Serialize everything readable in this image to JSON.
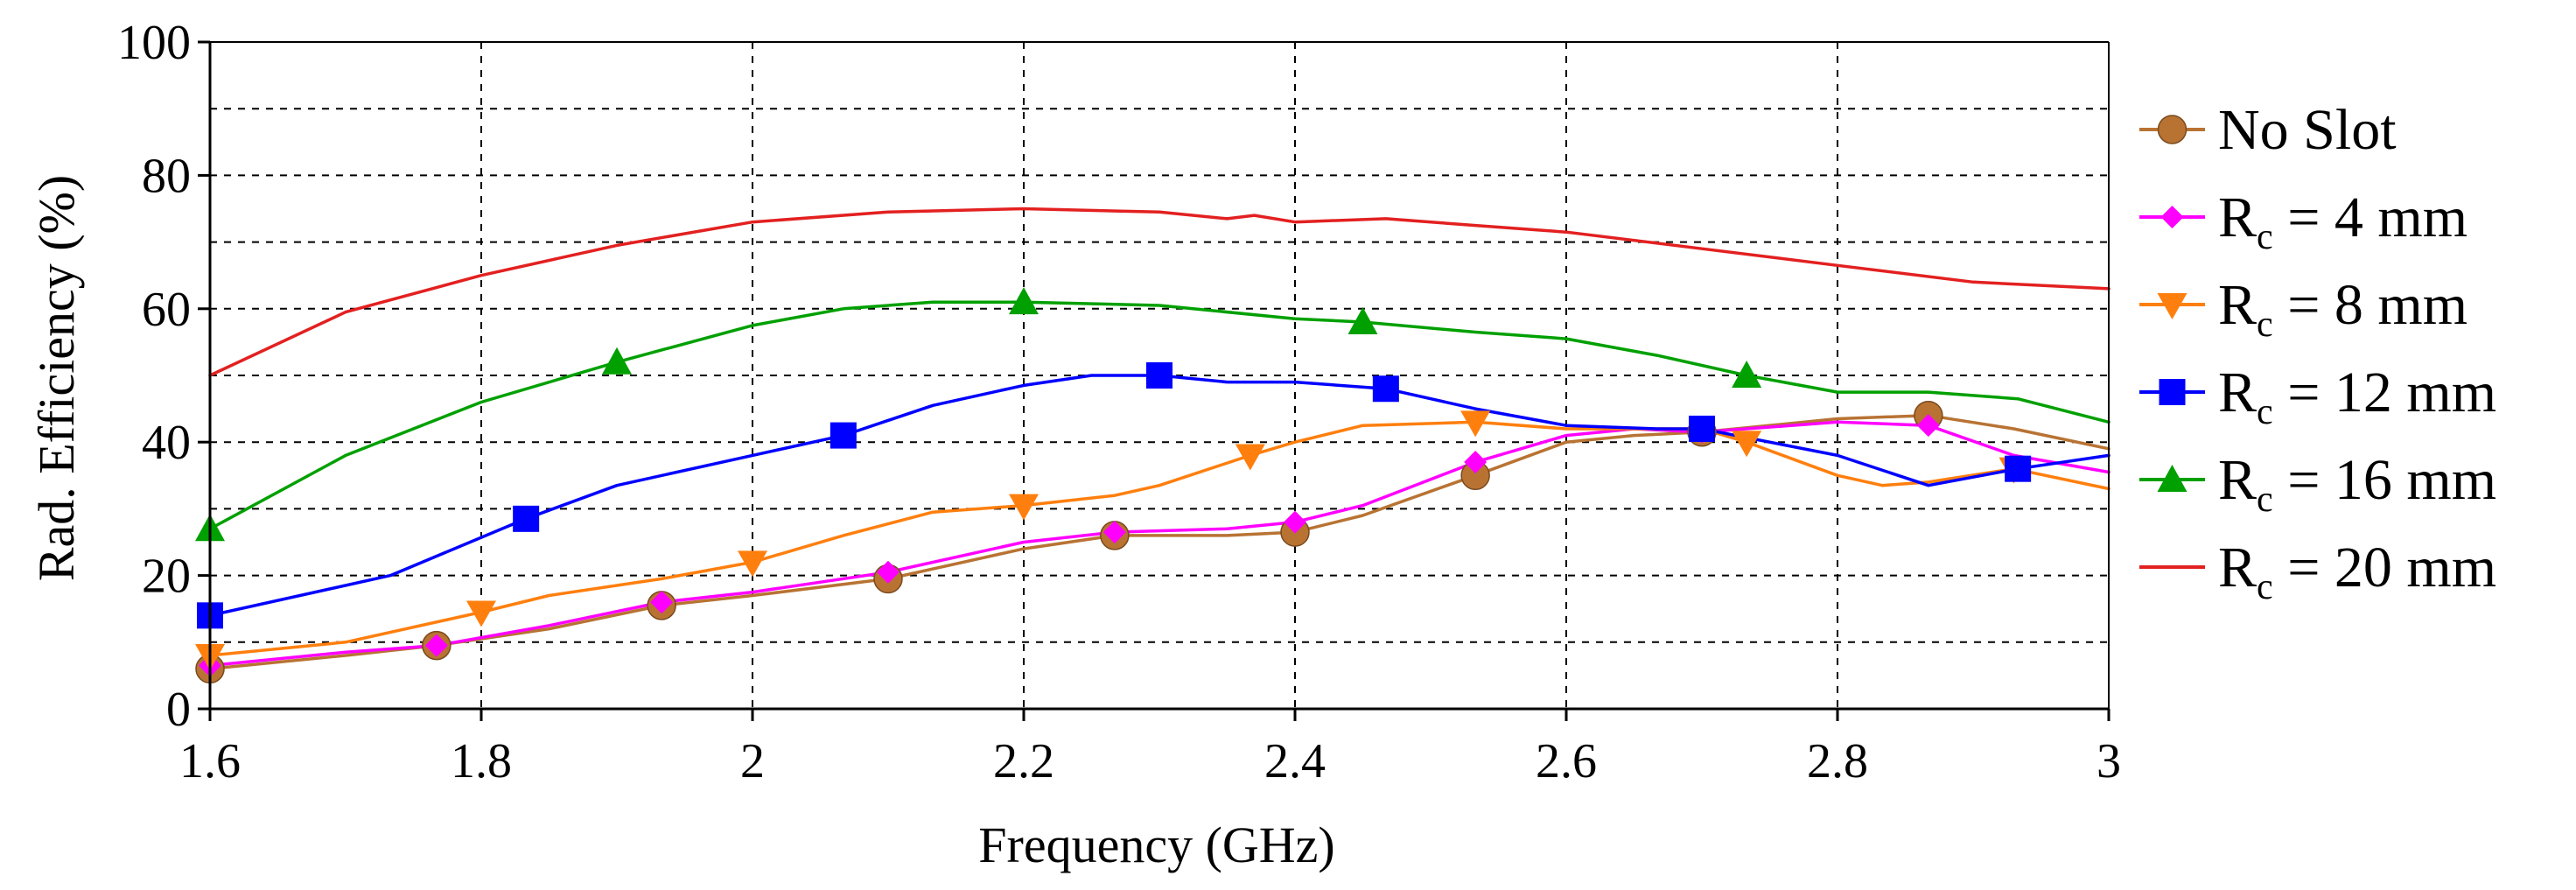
{
  "chart_data": {
    "type": "line",
    "title": "",
    "xlabel": "Frequency (GHz)",
    "ylabel": "Rad. Efficiency (%)",
    "xlim": [
      1.6,
      3.0
    ],
    "ylim": [
      0,
      100
    ],
    "xticks": [
      1.6,
      1.8,
      2.0,
      2.2,
      2.4,
      2.6,
      2.8,
      3.0
    ],
    "xtick_labels": [
      "1.6",
      "1.8",
      "2",
      "2.2",
      "2.4",
      "2.6",
      "2.8",
      "3"
    ],
    "yticks": [
      0,
      20,
      40,
      60,
      80,
      100
    ],
    "ytick_labels": [
      "0",
      "20",
      "40",
      "60",
      "80",
      "100"
    ],
    "grid": true,
    "legend_position": "right",
    "series": [
      {
        "name": "No Slot",
        "legend_main": "No Slot",
        "legend_sub": "",
        "legend_unit": "",
        "color": "#b87333",
        "marker": "circle",
        "x": [
          1.6,
          1.7,
          1.767,
          1.85,
          1.933,
          2.0,
          2.1,
          2.2,
          2.267,
          2.35,
          2.4,
          2.45,
          2.533,
          2.6,
          2.65,
          2.7,
          2.8,
          2.867,
          2.93,
          3.0
        ],
        "y": [
          6,
          8,
          9.5,
          12,
          15.5,
          17,
          19.5,
          24,
          26,
          26,
          26.5,
          29,
          35,
          40,
          41,
          41.5,
          43.5,
          44,
          42,
          39
        ],
        "markers_x": [
          1.6,
          1.767,
          1.933,
          2.1,
          2.267,
          2.4,
          2.533,
          2.7,
          2.867
        ],
        "markers_y": [
          6,
          9.5,
          15.5,
          19.5,
          26,
          26.5,
          35,
          41.5,
          44
        ]
      },
      {
        "name": "Rc = 4 mm",
        "legend_main": "R",
        "legend_sub": "c",
        "legend_unit": " = 4 mm",
        "color": "#ff00ff",
        "marker": "diamond",
        "x": [
          1.6,
          1.7,
          1.767,
          1.85,
          1.933,
          2.0,
          2.1,
          2.2,
          2.267,
          2.35,
          2.4,
          2.45,
          2.533,
          2.6,
          2.65,
          2.7,
          2.8,
          2.867,
          2.93,
          3.0
        ],
        "y": [
          6.5,
          8.5,
          9.5,
          12.5,
          16,
          17.5,
          20.5,
          25,
          26.5,
          27,
          28,
          30.5,
          37,
          41,
          42,
          41.5,
          43,
          42.5,
          38,
          35.5
        ],
        "markers_x": [
          1.6,
          1.767,
          1.933,
          2.1,
          2.267,
          2.4,
          2.533,
          2.7,
          2.867
        ],
        "markers_y": [
          6.5,
          9.5,
          16,
          20.5,
          26.5,
          28,
          37,
          41.5,
          42.5
        ]
      },
      {
        "name": "Rc = 8 mm",
        "legend_main": "R",
        "legend_sub": "c",
        "legend_unit": " = 8 mm",
        "color": "#ff7f0e",
        "marker": "triangle-down",
        "x": [
          1.6,
          1.7,
          1.8,
          1.85,
          1.933,
          2.0,
          2.067,
          2.133,
          2.2,
          2.267,
          2.3,
          2.367,
          2.4,
          2.45,
          2.533,
          2.6,
          2.65,
          2.7,
          2.733,
          2.8,
          2.833,
          2.867,
          2.93,
          3.0
        ],
        "y": [
          8,
          10,
          14.5,
          17,
          19.5,
          22,
          26,
          29.5,
          30.5,
          32,
          33.5,
          38,
          40,
          42.5,
          43,
          42,
          42,
          42,
          40,
          35,
          33.5,
          34,
          36,
          33
        ],
        "markers_x": [
          1.6,
          1.8,
          2.0,
          2.2,
          2.367,
          2.533,
          2.733,
          2.93
        ],
        "markers_y": [
          8,
          14.5,
          22,
          30.5,
          38,
          43,
          40,
          36
        ]
      },
      {
        "name": "Rc = 12 mm",
        "legend_main": "R",
        "legend_sub": "c",
        "legend_unit": " = 12 mm",
        "color": "#0000ff",
        "marker": "square",
        "x": [
          1.6,
          1.733,
          1.833,
          1.9,
          2.0,
          2.067,
          2.133,
          2.2,
          2.25,
          2.3,
          2.35,
          2.4,
          2.467,
          2.533,
          2.6,
          2.667,
          2.7,
          2.8,
          2.867,
          2.933,
          3.0
        ],
        "y": [
          14,
          20,
          28.5,
          33.5,
          38,
          41,
          45.5,
          48.5,
          50,
          50,
          49,
          49,
          48,
          45,
          42.5,
          42,
          42,
          38,
          33.5,
          36,
          38
        ],
        "markers_x": [
          1.6,
          1.833,
          2.067,
          2.3,
          2.467,
          2.7,
          2.933
        ],
        "markers_y": [
          14,
          28.5,
          41,
          50,
          48,
          42,
          36
        ]
      },
      {
        "name": "Rc = 16 mm",
        "legend_main": "R",
        "legend_sub": "c",
        "legend_unit": " = 16 mm",
        "color": "#00a000",
        "marker": "triangle-up",
        "x": [
          1.6,
          1.7,
          1.8,
          1.9,
          2.0,
          2.067,
          2.133,
          2.2,
          2.3,
          2.4,
          2.45,
          2.533,
          2.6,
          2.667,
          2.733,
          2.8,
          2.867,
          2.933,
          3.0
        ],
        "y": [
          27,
          38,
          46,
          52,
          57.5,
          60,
          61,
          61,
          60.5,
          58.5,
          58,
          56.5,
          55.5,
          53,
          50,
          47.5,
          47.5,
          46.5,
          43
        ],
        "markers_x": [
          1.6,
          1.9,
          2.2,
          2.45,
          2.733
        ],
        "markers_y": [
          27,
          52,
          61,
          58,
          50
        ]
      },
      {
        "name": "Rc = 20 mm",
        "legend_main": "R",
        "legend_sub": "c",
        "legend_unit": " = 20 mm",
        "color": "#e32020",
        "marker": "none",
        "x": [
          1.6,
          1.7,
          1.8,
          1.9,
          2.0,
          2.1,
          2.2,
          2.3,
          2.35,
          2.37,
          2.4,
          2.467,
          2.533,
          2.6,
          2.7,
          2.8,
          2.9,
          3.0
        ],
        "y": [
          50,
          59.5,
          65,
          69.5,
          73,
          74.5,
          75,
          74.5,
          73.5,
          74,
          73,
          73.5,
          72.5,
          71.5,
          69,
          66.5,
          64,
          63
        ],
        "markers_x": [],
        "markers_y": []
      }
    ]
  }
}
